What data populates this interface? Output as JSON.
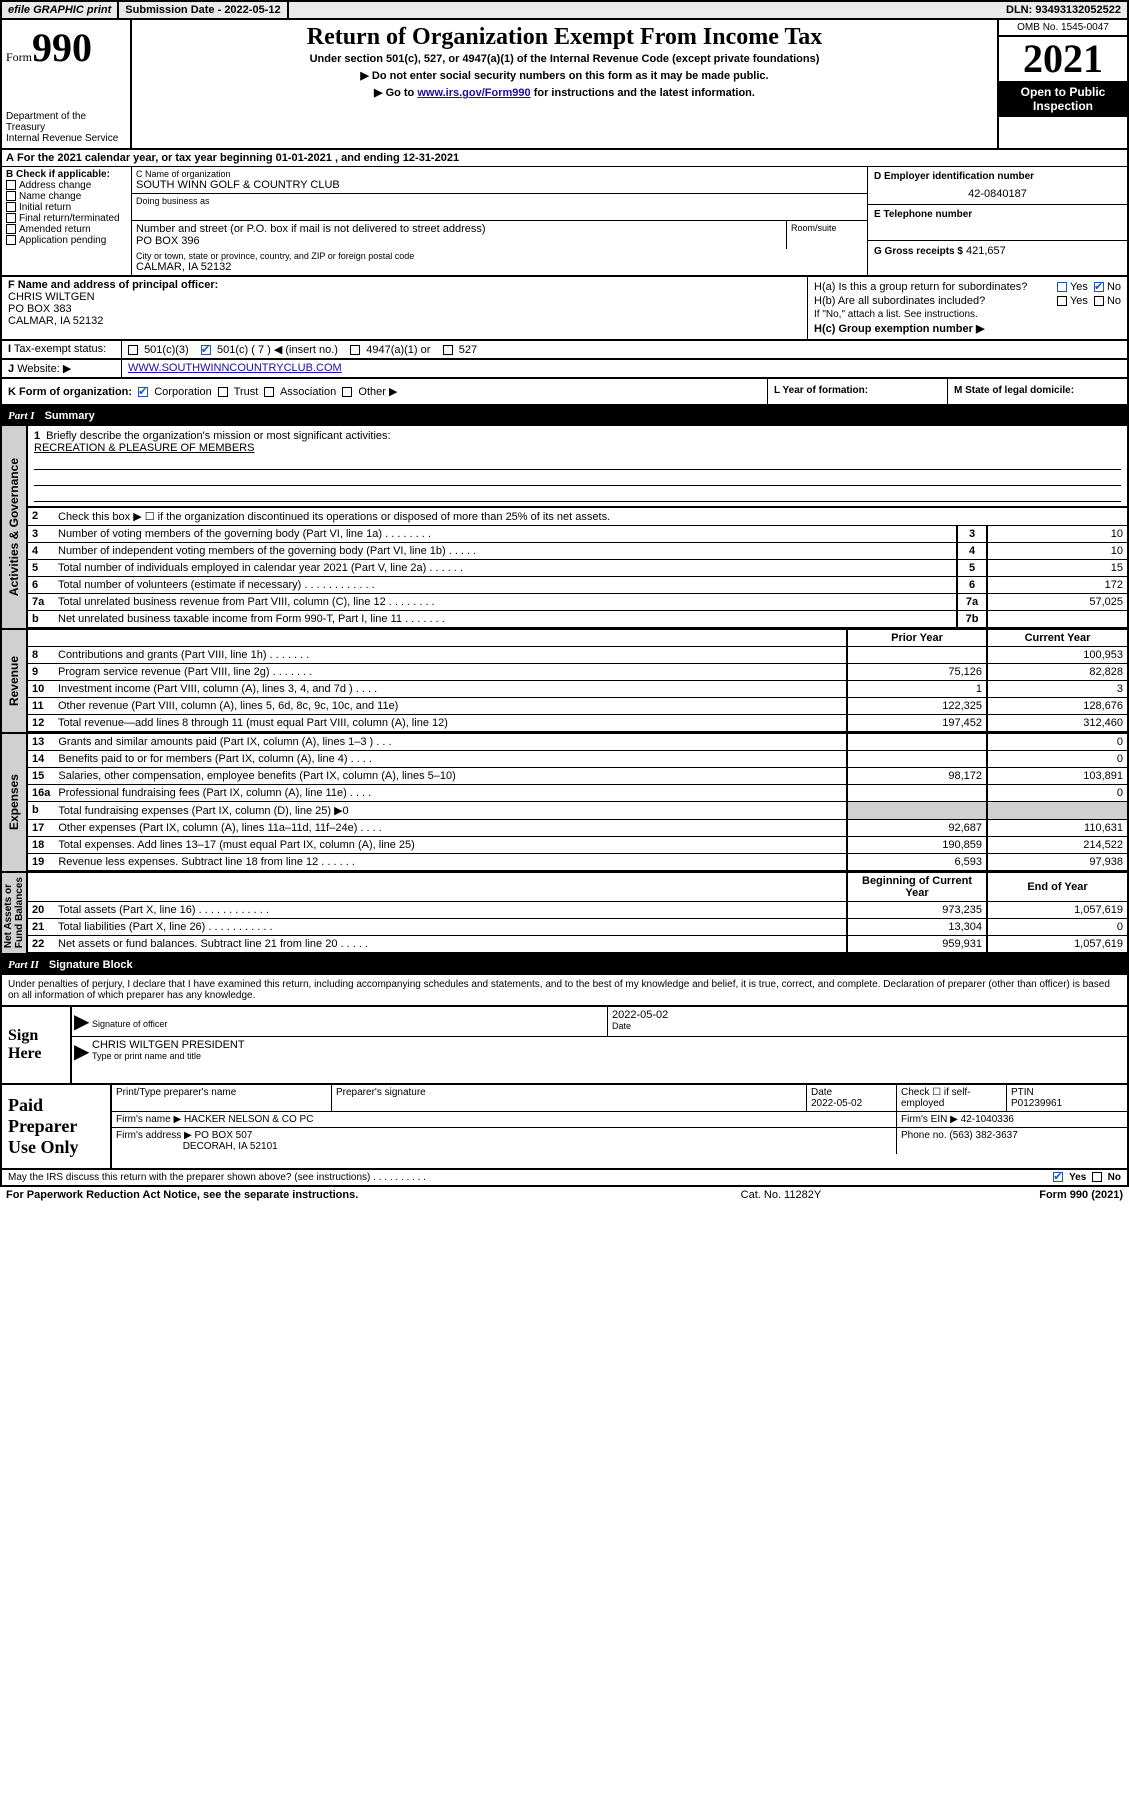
{
  "top": {
    "efile": "efile GRAPHIC print",
    "submission_label": "Submission Date - 2022-05-12",
    "dln": "DLN: 93493132052522"
  },
  "header": {
    "form_word": "Form",
    "form_num": "990",
    "title": "Return of Organization Exempt From Income Tax",
    "subtitle": "Under section 501(c), 527, or 4947(a)(1) of the Internal Revenue Code (except private foundations)",
    "instr1": "▶ Do not enter social security numbers on this form as it may be made public.",
    "instr2_pre": "▶ Go to ",
    "instr2_link": "www.irs.gov/Form990",
    "instr2_post": " for instructions and the latest information.",
    "dept": "Department of the Treasury\nInternal Revenue Service",
    "omb": "OMB No. 1545-0047",
    "year": "2021",
    "inspect": "Open to Public Inspection"
  },
  "A": {
    "text_pre": "For the 2021 calendar year, or tax year beginning ",
    "begin": "01-01-2021",
    "mid": " , and ending ",
    "end": "12-31-2021"
  },
  "B": {
    "label": "B Check if applicable:",
    "items": [
      "Address change",
      "Name change",
      "Initial return",
      "Final return/terminated",
      "Amended return",
      "Application pending"
    ]
  },
  "C": {
    "name_label": "C Name of organization",
    "name": "SOUTH WINN GOLF & COUNTRY CLUB",
    "dba_label": "Doing business as",
    "street_label": "Number and street (or P.O. box if mail is not delivered to street address)",
    "room_label": "Room/suite",
    "street": "PO BOX 396",
    "city_label": "City or town, state or province, country, and ZIP or foreign postal code",
    "city": "CALMAR, IA  52132"
  },
  "D": {
    "label": "D Employer identification number",
    "value": "42-0840187"
  },
  "E": {
    "label": "E Telephone number",
    "value": ""
  },
  "G": {
    "label": "G Gross receipts $",
    "value": "421,657"
  },
  "F": {
    "label": "F Name and address of principal officer:",
    "name": "CHRIS WILTGEN",
    "addr1": "PO BOX 383",
    "addr2": "CALMAR, IA  52132"
  },
  "H": {
    "a_label": "H(a)  Is this a group return for subordinates?",
    "a_yes": "Yes",
    "a_no": "No",
    "b_label": "H(b)  Are all subordinates included?",
    "b_yes": "Yes",
    "b_no": "No",
    "b_note": "If \"No,\" attach a list. See instructions.",
    "c_label": "H(c)  Group exemption number ▶"
  },
  "I": {
    "label": "Tax-exempt status:",
    "o1": "501(c)(3)",
    "o2": "501(c) ( 7 ) ◀ (insert no.)",
    "o3": "4947(a)(1) or",
    "o4": "527"
  },
  "J": {
    "label": "Website: ▶",
    "value": "WWW.SOUTHWINNCOUNTRYCLUB.COM"
  },
  "K": {
    "label": "K Form of organization:",
    "o1": "Corporation",
    "o2": "Trust",
    "o3": "Association",
    "o4": "Other ▶",
    "L": "L Year of formation:",
    "M": "M State of legal domicile:"
  },
  "partI": {
    "part": "Part I",
    "title": "Summary"
  },
  "summary": {
    "line1_label": "Briefly describe the organization's mission or most significant activities:",
    "line1_val": "RECREATION & PLEASURE OF MEMBERS",
    "line2": "Check this box ▶ ☐ if the organization discontinued its operations or disposed of more than 25% of its net assets.",
    "rows_gov": [
      {
        "n": "3",
        "d": "Number of voting members of the governing body (Part VI, line 1a)  .   .   .   .   .   .   .   .",
        "b": "3",
        "v": "10"
      },
      {
        "n": "4",
        "d": "Number of independent voting members of the governing body (Part VI, line 1b)   .   .   .   .   .",
        "b": "4",
        "v": "10"
      },
      {
        "n": "5",
        "d": "Total number of individuals employed in calendar year 2021 (Part V, line 2a)   .   .   .   .   .   .",
        "b": "5",
        "v": "15"
      },
      {
        "n": "6",
        "d": "Total number of volunteers (estimate if necessary)   .   .   .   .   .   .   .   .   .   .   .   .",
        "b": "6",
        "v": "172"
      },
      {
        "n": "7a",
        "d": "Total unrelated business revenue from Part VIII, column (C), line 12   .   .   .   .   .   .   .   .",
        "b": "7a",
        "v": "57,025"
      },
      {
        "n": "b",
        "d": "Net unrelated business taxable income from Form 990-T, Part I, line 11   .   .   .   .   .   .   .",
        "b": "7b",
        "v": ""
      }
    ],
    "col_hdr_prior": "Prior Year",
    "col_hdr_current": "Current Year",
    "rows_rev": [
      {
        "n": "8",
        "d": "Contributions and grants (Part VIII, line 1h)   .   .   .   .   .   .   .",
        "p": "",
        "c": "100,953"
      },
      {
        "n": "9",
        "d": "Program service revenue (Part VIII, line 2g)   .   .   .   .   .   .   .",
        "p": "75,126",
        "c": "82,828"
      },
      {
        "n": "10",
        "d": "Investment income (Part VIII, column (A), lines 3, 4, and 7d )   .   .   .   .",
        "p": "1",
        "c": "3"
      },
      {
        "n": "11",
        "d": "Other revenue (Part VIII, column (A), lines 5, 6d, 8c, 9c, 10c, and 11e)",
        "p": "122,325",
        "c": "128,676"
      },
      {
        "n": "12",
        "d": "Total revenue—add lines 8 through 11 (must equal Part VIII, column (A), line 12)",
        "p": "197,452",
        "c": "312,460"
      }
    ],
    "rows_exp": [
      {
        "n": "13",
        "d": "Grants and similar amounts paid (Part IX, column (A), lines 1–3 )   .   .   .",
        "p": "",
        "c": "0"
      },
      {
        "n": "14",
        "d": "Benefits paid to or for members (Part IX, column (A), line 4)   .   .   .   .",
        "p": "",
        "c": "0"
      },
      {
        "n": "15",
        "d": "Salaries, other compensation, employee benefits (Part IX, column (A), lines 5–10)",
        "p": "98,172",
        "c": "103,891"
      },
      {
        "n": "16a",
        "d": "Professional fundraising fees (Part IX, column (A), line 11e)   .   .   .   .",
        "p": "",
        "c": "0"
      },
      {
        "n": "b",
        "d": "Total fundraising expenses (Part IX, column (D), line 25) ▶0",
        "p": "SHADE",
        "c": "SHADE"
      },
      {
        "n": "17",
        "d": "Other expenses (Part IX, column (A), lines 11a–11d, 11f–24e)   .   .   .   .",
        "p": "92,687",
        "c": "110,631"
      },
      {
        "n": "18",
        "d": "Total expenses. Add lines 13–17 (must equal Part IX, column (A), line 25)",
        "p": "190,859",
        "c": "214,522"
      },
      {
        "n": "19",
        "d": "Revenue less expenses. Subtract line 18 from line 12   .   .   .   .   .   .",
        "p": "6,593",
        "c": "97,938"
      }
    ],
    "col_hdr_begin": "Beginning of Current Year",
    "col_hdr_end": "End of Year",
    "rows_net": [
      {
        "n": "20",
        "d": "Total assets (Part X, line 16)   .   .   .   .   .   .   .   .   .   .   .   .",
        "p": "973,235",
        "c": "1,057,619"
      },
      {
        "n": "21",
        "d": "Total liabilities (Part X, line 26)   .   .   .   .   .   .   .   .   .   .   .",
        "p": "13,304",
        "c": "0"
      },
      {
        "n": "22",
        "d": "Net assets or fund balances. Subtract line 21 from line 20   .   .   .   .   .",
        "p": "959,931",
        "c": "1,057,619"
      }
    ],
    "tabs": {
      "gov": "Activities & Governance",
      "rev": "Revenue",
      "exp": "Expenses",
      "net": "Net Assets or\nFund Balances"
    }
  },
  "partII": {
    "part": "Part II",
    "title": "Signature Block"
  },
  "perjury": "Under penalties of perjury, I declare that I have examined this return, including accompanying schedules and statements, and to the best of my knowledge and belief, it is true, correct, and complete. Declaration of preparer (other than officer) is based on all information of which preparer has any knowledge.",
  "sign": {
    "header": "Sign Here",
    "sig_label": "Signature of officer",
    "date_label": "Date",
    "date_val": "2022-05-02",
    "name_line": "CHRIS WILTGEN  PRESIDENT",
    "name_label": "Type or print name and title"
  },
  "prep": {
    "header": "Paid Preparer Use Only",
    "col1": "Print/Type preparer's name",
    "col2": "Preparer's signature",
    "col3_label": "Date",
    "col3_val": "2022-05-02",
    "col4_label": "Check ☐ if self-employed",
    "col5_label": "PTIN",
    "col5_val": "P01239961",
    "firm_name_label": "Firm's name    ▶",
    "firm_name": "HACKER NELSON & CO PC",
    "firm_ein_label": "Firm's EIN ▶",
    "firm_ein": "42-1040336",
    "firm_addr_label": "Firm's address ▶",
    "firm_addr1": "PO BOX 507",
    "firm_addr2": "DECORAH, IA  52101",
    "phone_label": "Phone no.",
    "phone": "(563) 382-3637"
  },
  "discuss": {
    "q": "May the IRS discuss this return with the preparer shown above? (see instructions)   .   .   .   .   .   .   .   .   .   .",
    "yes": "Yes",
    "no": "No"
  },
  "footer": {
    "l": "For Paperwork Reduction Act Notice, see the separate instructions.",
    "m": "Cat. No. 11282Y",
    "r": "Form 990 (2021)"
  }
}
